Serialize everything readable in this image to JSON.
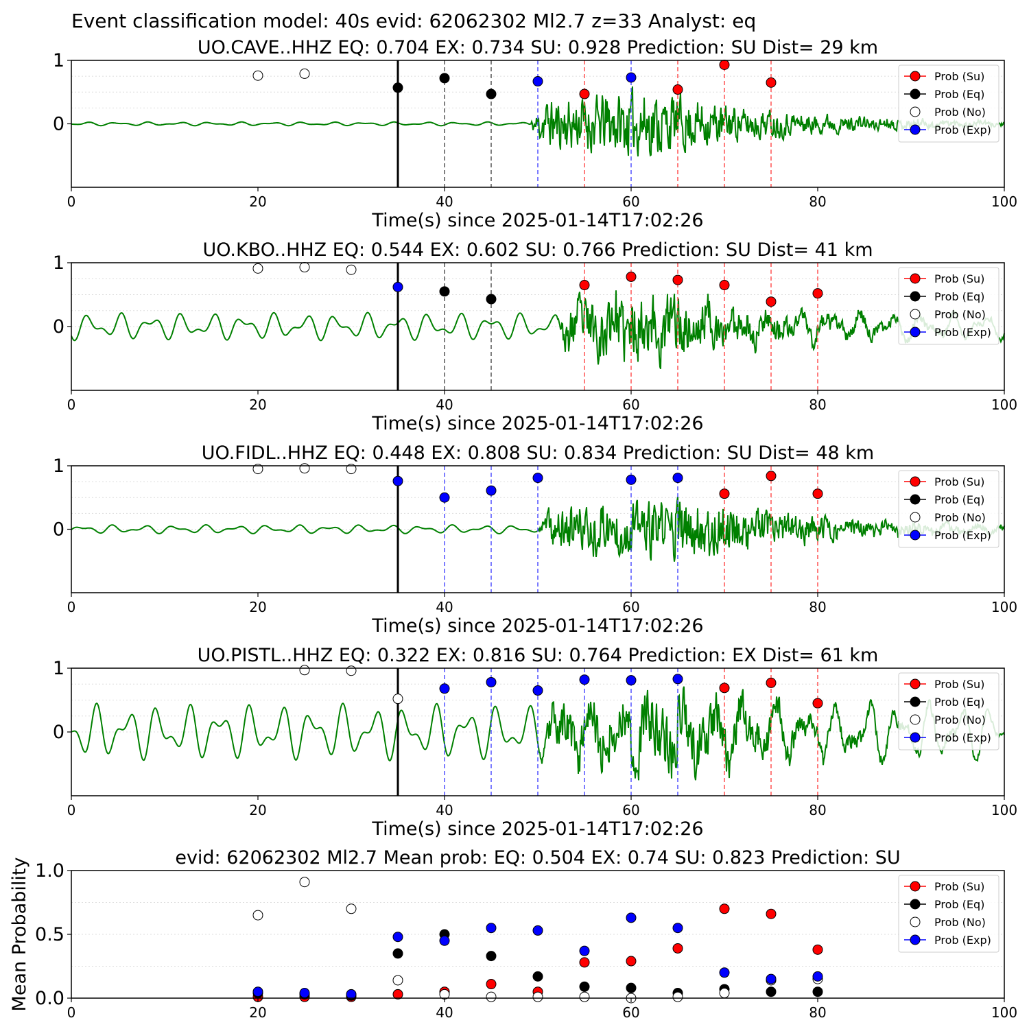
{
  "figure_title": "Event classification model: 40s evid: 62062302 Ml2.7 z=33 Analyst: eq",
  "legend": {
    "su": "Prob (Su)",
    "eq": "Prob (Eq)",
    "no": "Prob (No)",
    "exp": "Prob (Exp)"
  },
  "colors": {
    "su": "#ff0000",
    "eq": "#000000",
    "no": "#ffffff",
    "exp": "#0000ff",
    "waveform": "#008000",
    "su_line": "#ff5050",
    "eq_line": "#555555",
    "exp_line": "#5050ff"
  },
  "chart_data": [
    {
      "type": "scatter",
      "title": "UO.CAVE..HHZ   EQ: 0.704  EX: 0.734  SU: 0.928   Prediction: SU    Dist= 29 km",
      "xlabel": "Time(s) since 2025-01-14T17:02:26",
      "ylabel": "",
      "xlim": [
        0,
        100
      ],
      "ylim": [
        -1,
        1
      ],
      "xticks": [
        "0",
        "20",
        "40",
        "60",
        "80",
        "100"
      ],
      "yticks": [
        "0",
        "1"
      ],
      "legend_position": "top-right",
      "grid": "horizontal dotted",
      "onset_line_x": 35,
      "waveform": {
        "noise_amplitude": 0.03,
        "signal_start": 49,
        "signal_peak_time": 62,
        "signal_amplitude": 0.55,
        "signal_end": 100,
        "seed": 11
      },
      "points": [
        {
          "x": 20,
          "y": 0.76,
          "class": "no"
        },
        {
          "x": 25,
          "y": 0.79,
          "class": "no"
        },
        {
          "x": 35,
          "y": 0.57,
          "class": "eq"
        },
        {
          "x": 40,
          "y": 0.72,
          "class": "eq"
        },
        {
          "x": 45,
          "y": 0.47,
          "class": "eq"
        },
        {
          "x": 50,
          "y": 0.67,
          "class": "exp"
        },
        {
          "x": 55,
          "y": 0.47,
          "class": "su"
        },
        {
          "x": 60,
          "y": 0.73,
          "class": "exp"
        },
        {
          "x": 65,
          "y": 0.54,
          "class": "su"
        },
        {
          "x": 70,
          "y": 0.93,
          "class": "su"
        },
        {
          "x": 75,
          "y": 0.65,
          "class": "su"
        }
      ]
    },
    {
      "type": "scatter",
      "title": "UO.KBO..HHZ   EQ: 0.544  EX: 0.602  SU: 0.766   Prediction: SU    Dist= 41 km",
      "xlabel": "Time(s) since 2025-01-14T17:02:26",
      "ylabel": "",
      "xlim": [
        0,
        100
      ],
      "ylim": [
        -1,
        1
      ],
      "xticks": [
        "0",
        "20",
        "40",
        "60",
        "80",
        "100"
      ],
      "yticks": [
        "0",
        "1"
      ],
      "legend_position": "top-right",
      "grid": "horizontal dotted",
      "onset_line_x": 35,
      "waveform": {
        "noise_amplitude": 0.22,
        "signal_start": 52,
        "signal_peak_time": 62,
        "signal_amplitude": 0.55,
        "signal_end": 100,
        "seed": 23
      },
      "points": [
        {
          "x": 20,
          "y": 0.91,
          "class": "no"
        },
        {
          "x": 25,
          "y": 0.93,
          "class": "no"
        },
        {
          "x": 30,
          "y": 0.89,
          "class": "no"
        },
        {
          "x": 35,
          "y": 0.62,
          "class": "exp"
        },
        {
          "x": 40,
          "y": 0.55,
          "class": "eq"
        },
        {
          "x": 45,
          "y": 0.43,
          "class": "eq"
        },
        {
          "x": 55,
          "y": 0.65,
          "class": "su"
        },
        {
          "x": 60,
          "y": 0.78,
          "class": "su"
        },
        {
          "x": 65,
          "y": 0.73,
          "class": "su"
        },
        {
          "x": 70,
          "y": 0.65,
          "class": "su"
        },
        {
          "x": 75,
          "y": 0.39,
          "class": "su"
        },
        {
          "x": 80,
          "y": 0.52,
          "class": "su"
        }
      ]
    },
    {
      "type": "scatter",
      "title": "UO.FIDL..HHZ   EQ: 0.448  EX: 0.808  SU: 0.834   Prediction: SU    Dist= 48 km",
      "xlabel": "Time(s) since 2025-01-14T17:02:26",
      "ylabel": "",
      "xlim": [
        0,
        100
      ],
      "ylim": [
        -1,
        1
      ],
      "xticks": [
        "0",
        "20",
        "40",
        "60",
        "80",
        "100"
      ],
      "yticks": [
        "0",
        "1"
      ],
      "legend_position": "top-right",
      "grid": "horizontal dotted",
      "onset_line_x": 35,
      "waveform": {
        "noise_amplitude": 0.07,
        "signal_start": 50,
        "signal_peak_time": 67,
        "signal_amplitude": 0.5,
        "signal_end": 100,
        "seed": 37
      },
      "points": [
        {
          "x": 20,
          "y": 0.95,
          "class": "no"
        },
        {
          "x": 25,
          "y": 0.96,
          "class": "no"
        },
        {
          "x": 30,
          "y": 0.95,
          "class": "no"
        },
        {
          "x": 35,
          "y": 0.76,
          "class": "exp"
        },
        {
          "x": 40,
          "y": 0.5,
          "class": "exp"
        },
        {
          "x": 45,
          "y": 0.61,
          "class": "exp"
        },
        {
          "x": 50,
          "y": 0.81,
          "class": "exp"
        },
        {
          "x": 60,
          "y": 0.78,
          "class": "exp"
        },
        {
          "x": 65,
          "y": 0.81,
          "class": "exp"
        },
        {
          "x": 70,
          "y": 0.56,
          "class": "su"
        },
        {
          "x": 75,
          "y": 0.84,
          "class": "su"
        },
        {
          "x": 80,
          "y": 0.56,
          "class": "su"
        }
      ]
    },
    {
      "type": "scatter",
      "title": "UO.PISTL..HHZ   EQ: 0.322  EX: 0.816  SU: 0.764   Prediction: EX    Dist= 61 km",
      "xlabel": "Time(s) since 2025-01-14T17:02:26",
      "ylabel": "",
      "xlim": [
        0,
        100
      ],
      "ylim": [
        -1,
        1
      ],
      "xticks": [
        "0",
        "20",
        "40",
        "60",
        "80",
        "100"
      ],
      "yticks": [
        "0",
        "1"
      ],
      "legend_position": "top-right",
      "grid": "horizontal dotted",
      "onset_line_x": 35,
      "waveform": {
        "noise_amplitude": 0.45,
        "signal_start": 50,
        "signal_peak_time": 66,
        "signal_amplitude": 0.5,
        "signal_end": 100,
        "seed": 53
      },
      "points": [
        {
          "x": 25,
          "y": 0.97,
          "class": "no"
        },
        {
          "x": 30,
          "y": 0.96,
          "class": "no"
        },
        {
          "x": 35,
          "y": 0.52,
          "class": "no"
        },
        {
          "x": 40,
          "y": 0.68,
          "class": "exp"
        },
        {
          "x": 45,
          "y": 0.78,
          "class": "exp"
        },
        {
          "x": 50,
          "y": 0.65,
          "class": "exp"
        },
        {
          "x": 55,
          "y": 0.82,
          "class": "exp"
        },
        {
          "x": 60,
          "y": 0.81,
          "class": "exp"
        },
        {
          "x": 65,
          "y": 0.83,
          "class": "exp"
        },
        {
          "x": 70,
          "y": 0.69,
          "class": "su"
        },
        {
          "x": 75,
          "y": 0.77,
          "class": "su"
        },
        {
          "x": 80,
          "y": 0.45,
          "class": "su"
        }
      ]
    },
    {
      "type": "scatter",
      "title": "evid: 62062302  Ml2.7   Mean prob:   EQ: 0.504  EX: 0.74  SU: 0.823   Prediction: SU",
      "xlabel": "",
      "ylabel": "Mean Probability",
      "xlim": [
        0,
        100
      ],
      "ylim": [
        0,
        1
      ],
      "xticks": [
        "0",
        "20",
        "40",
        "60",
        "80",
        "100"
      ],
      "yticks": [
        "0.0",
        "0.5",
        "1.0"
      ],
      "legend_position": "top-right",
      "grid": "horizontal dotted",
      "series": [
        {
          "name": "Prob (Su)",
          "class": "su",
          "x": [
            20,
            25,
            30,
            35,
            40,
            45,
            50,
            55,
            60,
            65,
            70,
            75,
            80
          ],
          "values": [
            0.01,
            0.01,
            0.01,
            0.03,
            0.05,
            0.11,
            0.05,
            0.28,
            0.29,
            0.39,
            0.7,
            0.66,
            0.38
          ]
        },
        {
          "name": "Prob (Eq)",
          "class": "eq",
          "x": [
            20,
            25,
            30,
            35,
            40,
            45,
            50,
            55,
            60,
            65,
            70,
            75,
            80
          ],
          "values": [
            0.04,
            0.03,
            0.02,
            0.35,
            0.5,
            0.33,
            0.17,
            0.09,
            0.08,
            0.04,
            0.07,
            0.05,
            0.05
          ]
        },
        {
          "name": "Prob (No)",
          "class": "no",
          "x": [
            20,
            25,
            30,
            35,
            40,
            45,
            50,
            55,
            60,
            65,
            70,
            75,
            80
          ],
          "values": [
            0.65,
            0.91,
            0.7,
            0.14,
            0.03,
            0.01,
            0.01,
            0.01,
            0.0,
            0.01,
            0.04,
            0.14,
            0.15
          ]
        },
        {
          "name": "Prob (Exp)",
          "class": "exp",
          "x": [
            20,
            25,
            30,
            35,
            40,
            45,
            50,
            55,
            60,
            65,
            70,
            75,
            80
          ],
          "values": [
            0.05,
            0.04,
            0.03,
            0.48,
            0.45,
            0.55,
            0.53,
            0.37,
            0.63,
            0.55,
            0.2,
            0.15,
            0.17
          ]
        }
      ]
    }
  ]
}
